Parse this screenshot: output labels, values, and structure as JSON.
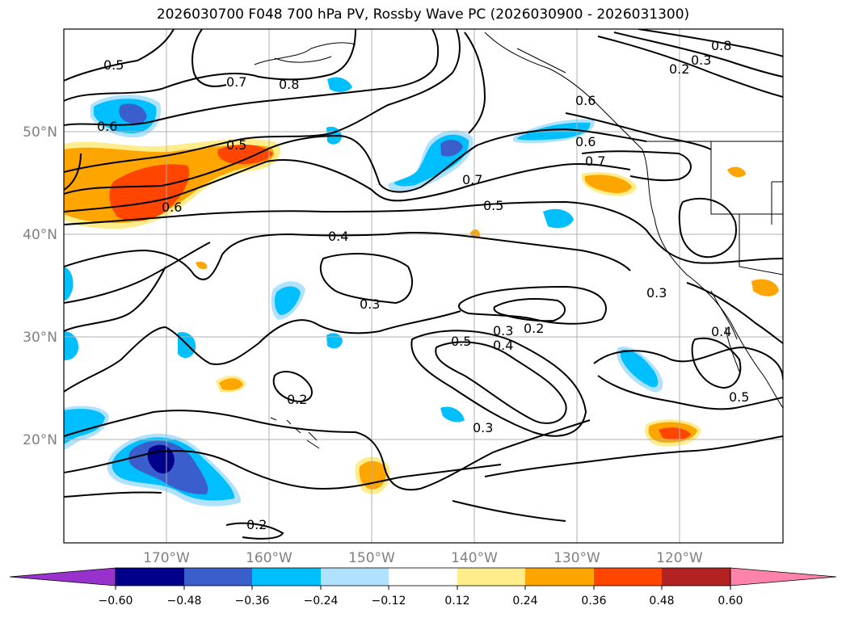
{
  "title": "2026030700 F048 700 hPa PV, Rossby Wave PC (2026030900 - 2026031300)",
  "map": {
    "lon_ticks": [
      "170°W",
      "160°W",
      "150°W",
      "140°W",
      "130°W",
      "120°W"
    ],
    "lat_ticks": [
      "50°N",
      "40°N",
      "30°N",
      "20°N"
    ],
    "grid": true
  },
  "contour_labels": [
    "0.5",
    "0.6",
    "0.7",
    "0.8",
    "0.5",
    "0.6",
    "0.7",
    "0.5",
    "0.4",
    "0.3",
    "0.3",
    "0.2",
    "0.4",
    "0.5",
    "0.3",
    "0.2",
    "0.2",
    "0.6",
    "0.7",
    "0.8",
    "0.3",
    "0.2",
    "0.3",
    "0.4",
    "0.5",
    "0.6"
  ],
  "colorbar": {
    "ticks": [
      "−0.60",
      "−0.48",
      "−0.36",
      "−0.24",
      "−0.12",
      "0.12",
      "0.24",
      "0.36",
      "0.48",
      "0.60"
    ],
    "colors": {
      "under": "#9932cc",
      "c1": "#00008b",
      "c2": "#3a5fcd",
      "c3": "#00bfff",
      "c4": "#b0e2ff",
      "c5": "#ffffff",
      "c6": "#ffec8b",
      "c7": "#ffa500",
      "c8": "#ff4500",
      "c9": "#b22222",
      "over": "#ff82ab"
    }
  }
}
